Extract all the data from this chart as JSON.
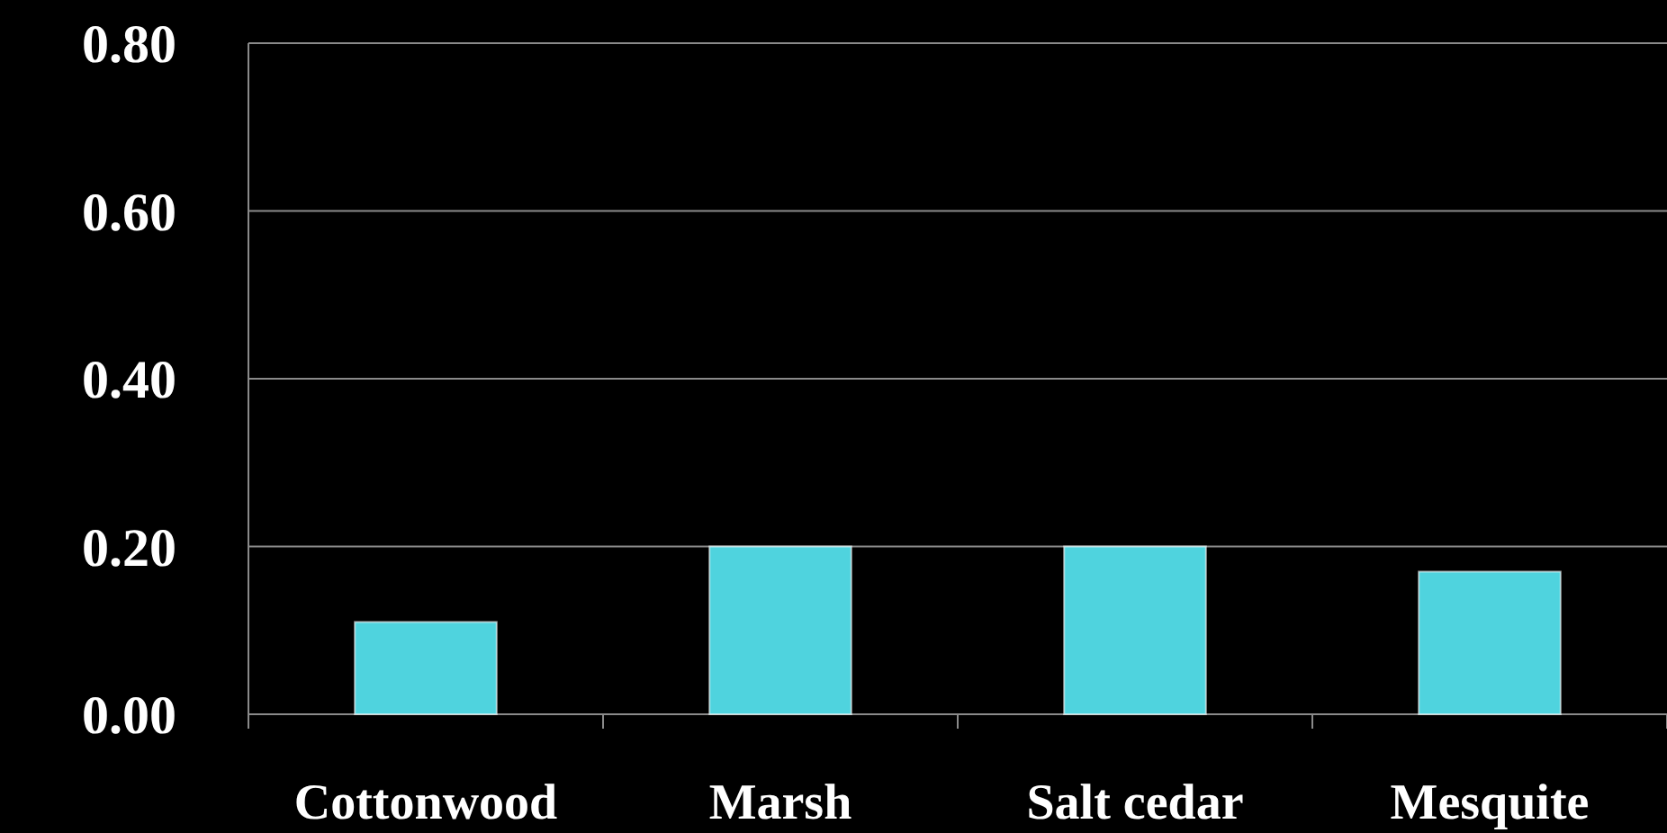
{
  "chart_data": {
    "type": "bar",
    "categories": [
      "Cottonwood",
      "Marsh",
      "Salt cedar",
      "Mesquite"
    ],
    "values": [
      0.11,
      0.2,
      0.2,
      0.17
    ],
    "color": "#4fd3de",
    "ylim": [
      0,
      0.8
    ],
    "yticks": [
      {
        "value": 0,
        "label": "0.00"
      },
      {
        "value": 0.2,
        "label": "0.20"
      },
      {
        "value": 0.4,
        "label": "0.40"
      },
      {
        "value": 0.6,
        "label": "0.60"
      },
      {
        "value": 0.8,
        "label": "0.80"
      }
    ],
    "grid": "y"
  }
}
